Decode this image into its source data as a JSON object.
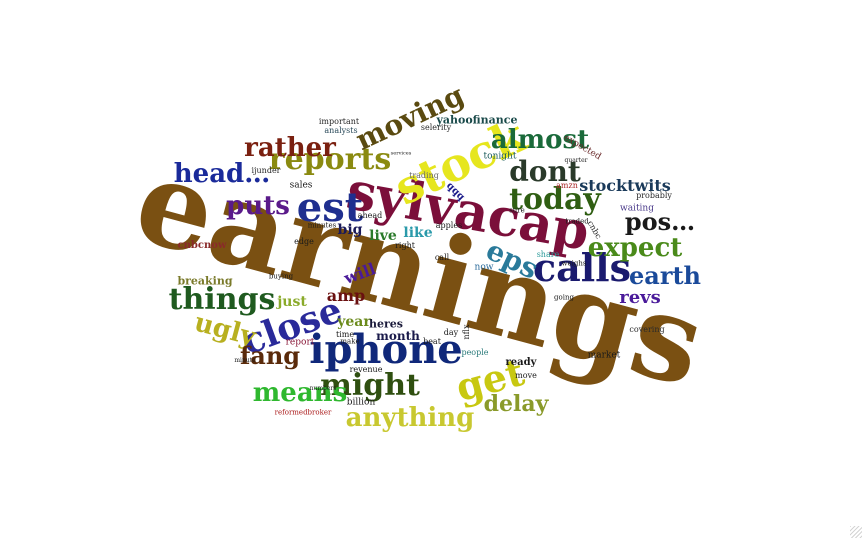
{
  "words": [
    {
      "text": "earnings",
      "color": "#7a5012"
    },
    {
      "text": "sylvacap",
      "color": "#7b0f3a"
    },
    {
      "text": "iphone",
      "color": "#10287a"
    },
    {
      "text": "stock",
      "color": "#e6e61e"
    },
    {
      "text": "calls",
      "color": "#1a1a6e"
    },
    {
      "text": "est",
      "color": "#1f2f8f"
    },
    {
      "text": "get",
      "color": "#c8c811"
    },
    {
      "text": "close",
      "color": "#2a2a9a"
    },
    {
      "text": "things",
      "color": "#1f5a1f"
    },
    {
      "text": "reports",
      "color": "#8a8a10"
    },
    {
      "text": "today",
      "color": "#2f5e12"
    },
    {
      "text": "might",
      "color": "#2f4f10"
    },
    {
      "text": "means",
      "color": "#2fb82f"
    },
    {
      "text": "anything",
      "color": "#c8c830"
    },
    {
      "text": "puts",
      "color": "#5a1a8a"
    },
    {
      "text": "head…",
      "color": "#1a2a9a"
    },
    {
      "text": "rather",
      "color": "#7a2010"
    },
    {
      "text": "almost",
      "color": "#1a6a3a"
    },
    {
      "text": "dont",
      "color": "#2a3a2a"
    },
    {
      "text": "moving",
      "color": "#5a4a10"
    },
    {
      "text": "eps",
      "color": "#2a7a9a"
    },
    {
      "text": "expect",
      "color": "#4a8a1a"
    },
    {
      "text": "earth",
      "color": "#1a4a9a"
    },
    {
      "text": "pos…",
      "color": "#1a1a1a"
    },
    {
      "text": "ugly",
      "color": "#b8b020"
    },
    {
      "text": "fang",
      "color": "#5a2a0a"
    },
    {
      "text": "delay",
      "color": "#8a9a2a"
    },
    {
      "text": "revs",
      "color": "#4a1a9a"
    },
    {
      "text": "stocktwits",
      "color": "#1a3a5a"
    },
    {
      "text": "amp",
      "color": "#6a1010"
    },
    {
      "text": "will",
      "color": "#4a1a9a"
    },
    {
      "text": "live",
      "color": "#2a7a2a"
    },
    {
      "text": "like",
      "color": "#2a9aaa"
    },
    {
      "text": "big",
      "color": "#1a1a5a"
    },
    {
      "text": "year",
      "color": "#6a8a1a"
    },
    {
      "text": "just",
      "color": "#8aaa2a"
    },
    {
      "text": "month",
      "color": "#1a1a4a"
    },
    {
      "text": "heres",
      "color": "#1a1a3a"
    },
    {
      "text": "breaking",
      "color": "#7a7a2a"
    },
    {
      "text": "cnbcnow",
      "color": "#8a2a2a"
    },
    {
      "text": "yahoofinance",
      "color": "#1a4a4a"
    },
    {
      "text": "tonight",
      "color": "#1a5a5a"
    },
    {
      "text": "sales",
      "color": "#1a1a1a"
    },
    {
      "text": "important",
      "color": "#2a2a2a"
    },
    {
      "text": "analysts",
      "color": "#2a4a5a"
    },
    {
      "text": "selerity",
      "color": "#2a2a2a"
    },
    {
      "text": "trading",
      "color": "#6a6a6a"
    },
    {
      "text": "expected",
      "color": "#6a2a2a"
    },
    {
      "text": "market",
      "color": "#1a1a1a"
    },
    {
      "text": "ready",
      "color": "#1a1a1a"
    },
    {
      "text": "billion",
      "color": "#1a1a1a"
    },
    {
      "text": "report",
      "color": "#8a1a3a"
    },
    {
      "text": "revenue",
      "color": "#1a1a1a"
    },
    {
      "text": "people",
      "color": "#2a7a7a"
    },
    {
      "text": "waiting",
      "color": "#4a3a8a"
    },
    {
      "text": "covering",
      "color": "#2a2a2a"
    },
    {
      "text": "probably",
      "color": "#2a2a2a"
    },
    {
      "text": "edge",
      "color": "#1a1a1a"
    },
    {
      "text": "apples",
      "color": "#1a1a1a"
    },
    {
      "text": "qqq",
      "color": "#1a1a8a"
    },
    {
      "text": "amzn",
      "color": "#aa2a2a"
    },
    {
      "text": "nflx",
      "color": "#1a1a1a"
    },
    {
      "text": "ijunder",
      "color": "#2a2a2a"
    },
    {
      "text": "reformedbroker",
      "color": "#aa1a1a"
    },
    {
      "text": "call",
      "color": "#1a1a1a"
    },
    {
      "text": "right",
      "color": "#1a1a1a"
    },
    {
      "text": "ahead",
      "color": "#1a1a1a"
    },
    {
      "text": "move",
      "color": "#1a1a1a"
    },
    {
      "text": "now",
      "color": "#2a6a9a"
    },
    {
      "text": "day",
      "color": "#1a1a1a"
    },
    {
      "text": "time",
      "color": "#1a1a1a"
    },
    {
      "text": "minutes",
      "color": "#1a1a1a"
    },
    {
      "text": "make",
      "color": "#1a1a1a"
    },
    {
      "text": "beat",
      "color": "#1a1a1a"
    },
    {
      "text": "share",
      "color": "#2a9a9a"
    },
    {
      "text": "going",
      "color": "#1a1a1a"
    },
    {
      "text": "buying",
      "color": "#1a1a1a"
    },
    {
      "text": "traded",
      "color": "#1a1a1a"
    },
    {
      "text": "weighs",
      "color": "#1a1a1a"
    },
    {
      "text": "sure",
      "color": "#1a1a1a"
    },
    {
      "text": "quarter",
      "color": "#1a1a1a"
    },
    {
      "text": "services",
      "color": "#1a1a1a"
    },
    {
      "text": "cnbc",
      "color": "#1a1a1a"
    },
    {
      "text": "numbers",
      "color": "#1a1a1a"
    },
    {
      "text": "minute",
      "color": "#1a1a1a"
    }
  ]
}
